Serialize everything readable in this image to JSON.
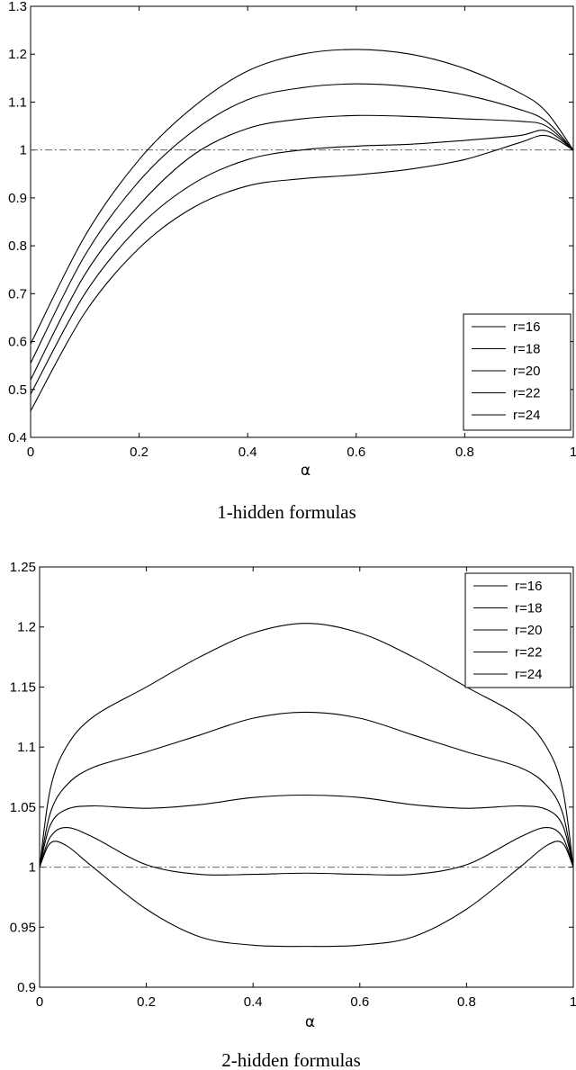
{
  "chart_data": [
    {
      "type": "line",
      "caption": "1-hidden formulas",
      "xlabel": "α",
      "ylabel": "",
      "xlim": [
        0,
        1
      ],
      "ylim": [
        0.4,
        1.3
      ],
      "xticks": [
        "0",
        "0.2",
        "0.4",
        "0.6",
        "0.8",
        "1"
      ],
      "yticks": [
        "0.4",
        "0.5",
        "0.6",
        "0.7",
        "0.8",
        "0.9",
        "1",
        "1.1",
        "1.2",
        "1.3"
      ],
      "grid": false,
      "legend_position": "bottom-right",
      "reference_line": {
        "y": 1,
        "style": "dash-dot",
        "color": "#666666"
      },
      "x": [
        0,
        0.1,
        0.2,
        0.3,
        0.4,
        0.5,
        0.6,
        0.7,
        0.8,
        0.9,
        0.95,
        1
      ],
      "series": [
        {
          "name": "r=16",
          "values": [
            0.595,
            0.82,
            0.98,
            1.09,
            1.165,
            1.2,
            1.21,
            1.2,
            1.17,
            1.12,
            1.08,
            1.0
          ]
        },
        {
          "name": "r=18",
          "values": [
            0.555,
            0.78,
            0.935,
            1.04,
            1.105,
            1.13,
            1.138,
            1.132,
            1.115,
            1.085,
            1.06,
            1.0
          ]
        },
        {
          "name": "r=20",
          "values": [
            0.52,
            0.74,
            0.885,
            0.99,
            1.045,
            1.065,
            1.072,
            1.07,
            1.065,
            1.06,
            1.05,
            1.0
          ]
        },
        {
          "name": "r=22",
          "values": [
            0.49,
            0.7,
            0.84,
            0.93,
            0.98,
            1.0,
            1.008,
            1.012,
            1.02,
            1.03,
            1.04,
            1.0
          ]
        },
        {
          "name": "r=24",
          "values": [
            0.455,
            0.66,
            0.795,
            0.88,
            0.925,
            0.94,
            0.948,
            0.96,
            0.98,
            1.015,
            1.03,
            1.0
          ]
        }
      ]
    },
    {
      "type": "line",
      "caption": "2-hidden formulas",
      "xlabel": "α",
      "ylabel": "",
      "xlim": [
        0,
        1
      ],
      "ylim": [
        0.9,
        1.25
      ],
      "xticks": [
        "0",
        "0.2",
        "0.4",
        "0.6",
        "0.8",
        "1"
      ],
      "yticks": [
        "0.9",
        "0.95",
        "1",
        "1.05",
        "1.1",
        "1.15",
        "1.2",
        "1.25"
      ],
      "grid": false,
      "legend_position": "top-right",
      "reference_line": {
        "y": 1,
        "style": "dash-dot",
        "color": "#666666"
      },
      "x": [
        0,
        0.02,
        0.05,
        0.1,
        0.2,
        0.3,
        0.4,
        0.5,
        0.6,
        0.7,
        0.8,
        0.9,
        0.95,
        0.98,
        1
      ],
      "series": [
        {
          "name": "r=16",
          "values": [
            1.0,
            1.065,
            1.1,
            1.125,
            1.15,
            1.175,
            1.195,
            1.203,
            1.195,
            1.175,
            1.15,
            1.125,
            1.1,
            1.065,
            1.0
          ]
        },
        {
          "name": "r=18",
          "values": [
            1.0,
            1.045,
            1.068,
            1.083,
            1.096,
            1.11,
            1.124,
            1.129,
            1.124,
            1.11,
            1.096,
            1.083,
            1.068,
            1.045,
            1.0
          ]
        },
        {
          "name": "r=20",
          "values": [
            1.0,
            1.035,
            1.048,
            1.051,
            1.049,
            1.052,
            1.058,
            1.06,
            1.058,
            1.052,
            1.049,
            1.051,
            1.048,
            1.035,
            1.0
          ]
        },
        {
          "name": "r=22",
          "values": [
            1.0,
            1.025,
            1.033,
            1.025,
            1.002,
            0.994,
            0.994,
            0.995,
            0.994,
            0.994,
            1.002,
            1.025,
            1.033,
            1.025,
            1.0
          ]
        },
        {
          "name": "r=24",
          "values": [
            1.0,
            1.02,
            1.018,
            1.0,
            0.965,
            0.942,
            0.935,
            0.934,
            0.935,
            0.942,
            0.965,
            1.0,
            1.018,
            1.02,
            1.0
          ]
        }
      ]
    }
  ]
}
